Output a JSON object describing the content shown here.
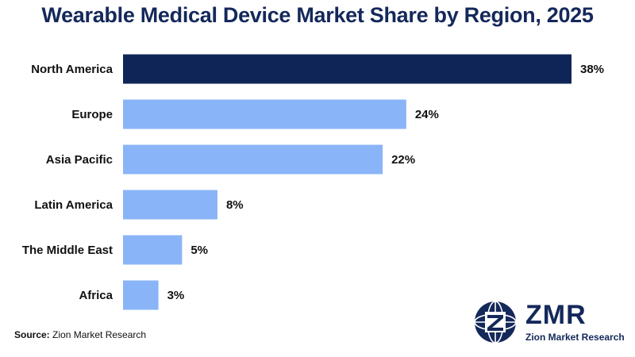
{
  "chart_data": {
    "type": "bar",
    "orientation": "horizontal",
    "title": "Wearable Medical Device Market Share by Region, 2025",
    "categories": [
      "North America",
      "Europe",
      "Asia Pacific",
      "Latin America",
      "The Middle East",
      "Africa"
    ],
    "values": [
      38,
      24,
      22,
      8,
      5,
      3
    ],
    "value_labels": [
      "38%",
      "24%",
      "22%",
      "8%",
      "5%",
      "3%"
    ],
    "xlim": [
      0,
      38
    ],
    "grid": false,
    "legend": "none",
    "colors": {
      "highlight": "#0f2557",
      "default": "#8ab4f8"
    }
  },
  "source": {
    "prefix": "Source:",
    "text": "Zion Market Research"
  },
  "logo": {
    "text": "ZMR",
    "subtitle": "Zion Market Research",
    "icon": "globe-z-icon",
    "color": "#14285a"
  }
}
